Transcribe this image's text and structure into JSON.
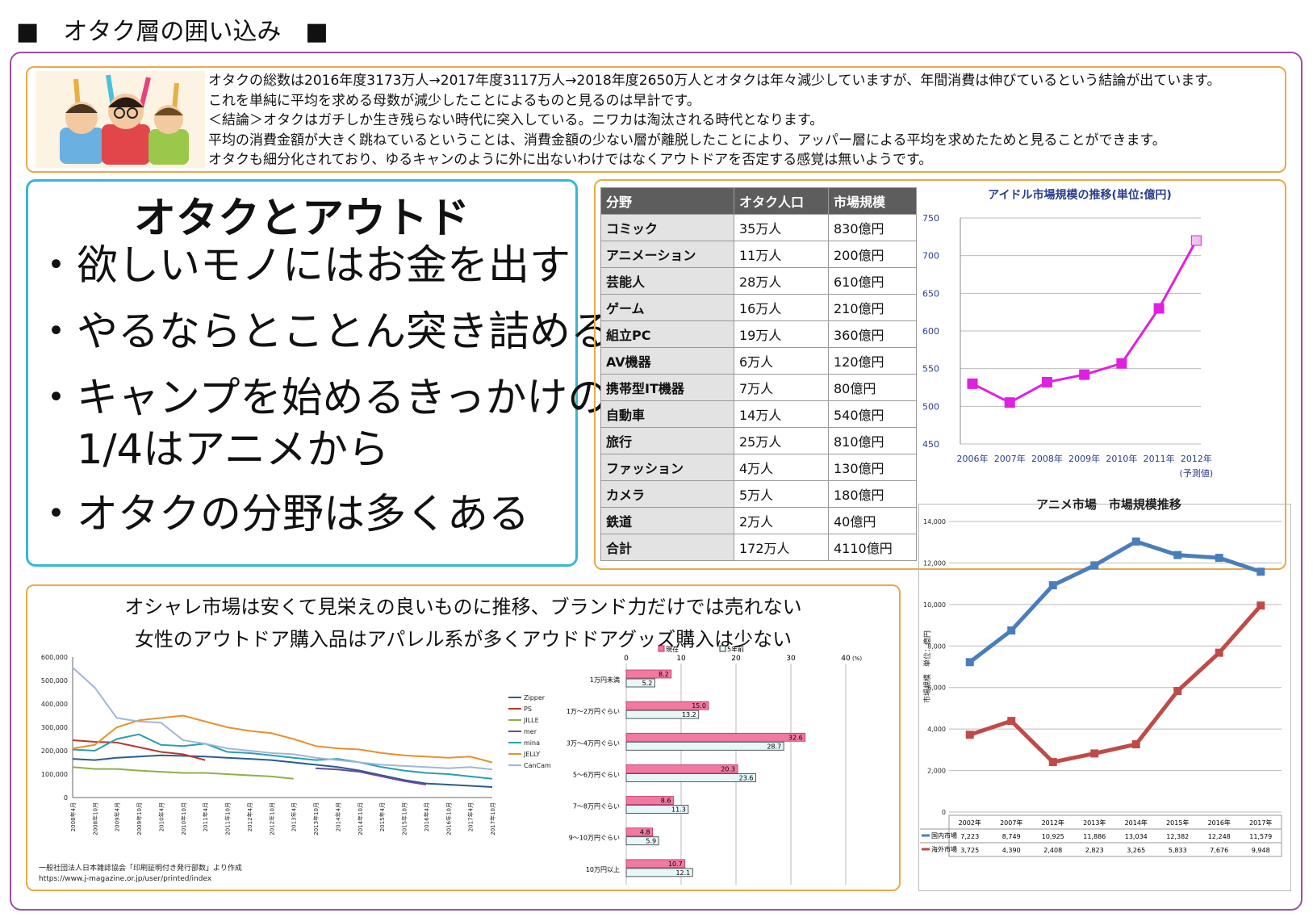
{
  "page_title": "■　オタク層の囲い込み　■",
  "intro": {
    "lines": [
      "オタクの総数は2016年度3173万人→2017年度3117万人→2018年度2650万人とオタクは年々減少していますが、年間消費は伸びているという結論が出ています。",
      "これを単純に平均を求める母数が減少したことによるものと見るのは早計です。",
      "＜結論＞オタクはガチしか生き残らない時代に突入している。ニワカは淘汰される時代となります。",
      "平均の消費金額が大きく跳ねているということは、消費金額の少ない層が離脱したことにより、アッパー層による平均を求めたためと見ることができます。",
      "オタクも細分化されており、ゆるキャンのように外に出ないわけではなくアウトドアを否定する感覚は無いようです。"
    ]
  },
  "outdoor": {
    "title": "オタクとアウトド",
    "bullets": [
      "・欲しいモノにはお金を出す",
      "・やるならとことん突き詰める",
      "・キャンプを始めるきっかけの\n　1/4はアニメから",
      "・オタクの分野は多くある"
    ]
  },
  "otaku_table": {
    "headers": [
      "分野",
      "オタク人口",
      "市場規模"
    ],
    "rows": [
      [
        "コミック",
        "35万人",
        "830億円"
      ],
      [
        "アニメーション",
        "11万人",
        "200億円"
      ],
      [
        "芸能人",
        "28万人",
        "610億円"
      ],
      [
        "ゲーム",
        "16万人",
        "210億円"
      ],
      [
        "組立PC",
        "19万人",
        "360億円"
      ],
      [
        "AV機器",
        "6万人",
        "120億円"
      ],
      [
        "携帯型IT機器",
        "7万人",
        "80億円"
      ],
      [
        "自動車",
        "14万人",
        "540億円"
      ],
      [
        "旅行",
        "25万人",
        "810億円"
      ],
      [
        "ファッション",
        "4万人",
        "130億円"
      ],
      [
        "カメラ",
        "5万人",
        "180億円"
      ],
      [
        "鉄道",
        "2万人",
        "40億円"
      ],
      [
        "合計",
        "172万人",
        "4110億円"
      ]
    ]
  },
  "fashion": {
    "title1": "オシャレ市場は安くて見栄えの良いものに推移、ブランド力だけでは売れない",
    "title2": "女性のアウトドア購入品はアパレル系が多くアウドドアグッズ購入は少ない",
    "source1": "一般社団法人日本雑誌協会「印刷証明付き発行部数」より作成",
    "source2": "https://www.j-magazine.or.jp/user/printed/index"
  },
  "chart_data": [
    {
      "type": "line",
      "title": "アイドル市場規模の推移(単位:億円)",
      "categories": [
        "2006年",
        "2007年",
        "2008年",
        "2009年",
        "2010年",
        "2011年",
        "2012年"
      ],
      "x_note": "(予測値)",
      "series": [
        {
          "values": [
            530,
            505,
            532,
            542,
            557,
            630,
            720
          ]
        }
      ],
      "yticks": [
        "750",
        "700",
        "650",
        "600",
        "550",
        "500",
        "450"
      ],
      "ylim": [
        450,
        750
      ],
      "color": "#e020e0"
    },
    {
      "type": "line",
      "title": "アニメ市場　市場規模推移",
      "ylabel": "市場規模　単位：億円",
      "categories": [
        "2002年",
        "2007年",
        "2012年",
        "2013年",
        "2014年",
        "2015年",
        "2016年",
        "2017年"
      ],
      "yticks": [
        "14,000",
        "12,000",
        "10,000",
        "8,000",
        "6,000",
        "4,000",
        "2,000",
        "0"
      ],
      "ylim": [
        0,
        14000
      ],
      "series": [
        {
          "name": "国内市場",
          "values": [
            7223,
            8749,
            10925,
            11886,
            13034,
            12382,
            12248,
            11579
          ],
          "labels": [
            "7,223",
            "8,749",
            "10,925",
            "11,886",
            "13,034",
            "12,382",
            "12,248",
            "11,579"
          ],
          "color": "#4a7ebb"
        },
        {
          "name": "海外市場",
          "values": [
            3725,
            4390,
            2408,
            2823,
            3265,
            5833,
            7676,
            9948
          ],
          "labels": [
            "3,725",
            "4,390",
            "2,408",
            "2,823",
            "3,265",
            "5,833",
            "7,676",
            "9,948"
          ],
          "color": "#be4b48"
        }
      ]
    },
    {
      "type": "line",
      "title": "",
      "yticks": [
        "600,000",
        "500,000",
        "400,000",
        "300,000",
        "200,000",
        "100,000",
        "0"
      ],
      "ylim": [
        0,
        600000
      ],
      "categories": [
        "2008年4月",
        "2008年10月",
        "2009年4月",
        "2009年10月",
        "2010年4月",
        "2010年10月",
        "2011年4月",
        "2011年10月",
        "2012年4月",
        "2012年10月",
        "2013年4月",
        "2013年10月",
        "2014年4月",
        "2014年10月",
        "2015年4月",
        "2015年10月",
        "2016年4月",
        "2016年10月",
        "2017年4月",
        "2017年10月"
      ],
      "series": [
        {
          "name": "Zipper",
          "color": "#2a5d8c",
          "values": [
            165000,
            160000,
            170000,
            175000,
            180000,
            178000,
            175000,
            170000,
            165000,
            160000,
            150000,
            140000,
            130000,
            115000,
            95000,
            75000,
            60000,
            55000,
            50000,
            45000
          ]
        },
        {
          "name": "PS",
          "color": "#b8392f",
          "values": [
            245000,
            238000,
            235000,
            215000,
            195000,
            185000,
            160000,
            null,
            null,
            null,
            null,
            null,
            null,
            null,
            null,
            null,
            null,
            null,
            null,
            null
          ]
        },
        {
          "name": "JILLE",
          "color": "#8db04a",
          "values": [
            130000,
            122000,
            122000,
            115000,
            110000,
            105000,
            105000,
            100000,
            95000,
            90000,
            80000,
            null,
            null,
            null,
            null,
            null,
            null,
            null,
            null,
            null
          ]
        },
        {
          "name": "mer",
          "color": "#6a4a9c",
          "values": [
            null,
            null,
            null,
            null,
            null,
            null,
            null,
            null,
            null,
            null,
            null,
            125000,
            120000,
            110000,
            90000,
            70000,
            55000,
            null,
            null,
            null
          ]
        },
        {
          "name": "mina",
          "color": "#2a9fb0",
          "values": [
            205000,
            200000,
            250000,
            270000,
            225000,
            220000,
            230000,
            195000,
            190000,
            180000,
            170000,
            160000,
            165000,
            150000,
            130000,
            115000,
            105000,
            100000,
            90000,
            80000
          ]
        },
        {
          "name": "JELLY",
          "color": "#e8902c",
          "values": [
            210000,
            225000,
            300000,
            330000,
            340000,
            350000,
            325000,
            300000,
            285000,
            275000,
            250000,
            220000,
            210000,
            205000,
            190000,
            180000,
            175000,
            170000,
            175000,
            150000
          ]
        },
        {
          "name": "CanCam",
          "color": "#9fb7d6",
          "values": [
            555000,
            470000,
            340000,
            325000,
            320000,
            245000,
            230000,
            210000,
            200000,
            190000,
            185000,
            170000,
            160000,
            150000,
            140000,
            135000,
            130000,
            125000,
            130000,
            120000
          ]
        }
      ]
    },
    {
      "type": "bar",
      "title": "",
      "legend": [
        "現在",
        "5年前"
      ],
      "categories": [
        "1万円未満",
        "1万～2万円ぐらい",
        "3万～4万円ぐらい",
        "5～6万円ぐらい",
        "7～8万円ぐらい",
        "9～10万円ぐらい",
        "10万円以上"
      ],
      "series": [
        {
          "name": "現在",
          "values": [
            8.2,
            15.0,
            32.6,
            20.3,
            8.6,
            4.8,
            10.7
          ],
          "labels": [
            "8.2",
            "15.0",
            "32.6",
            "20.3",
            "8.6",
            "4.8",
            "10.7"
          ],
          "color": "#f07aa0"
        },
        {
          "name": "5年前",
          "values": [
            5.2,
            13.2,
            28.7,
            23.6,
            11.3,
            5.9,
            12.1
          ],
          "labels": [
            "5.2",
            "13.2",
            "28.7",
            "23.6",
            "11.3",
            "5.9",
            "12.1"
          ],
          "color": "#e6f7fa"
        }
      ],
      "xticks": [
        "0",
        "10",
        "20",
        "30",
        "40"
      ],
      "x_unit": "(%)",
      "xlim": [
        0,
        40
      ]
    }
  ]
}
